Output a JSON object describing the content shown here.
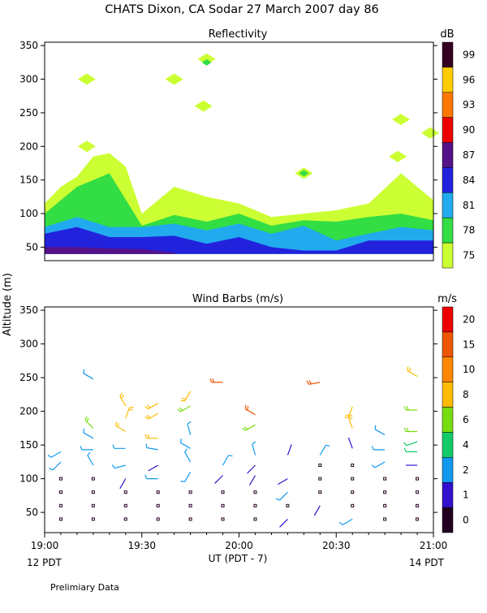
{
  "header": {
    "title": "CHATS Dixon, CA   Sodar   27 March 2007   day  86"
  },
  "shared": {
    "ylabel": "Altitude (m)",
    "xlabel": "UT  (PDT - 7)",
    "x_ticks": [
      "19:00",
      "19:30",
      "20:00",
      "20:30",
      "21:00"
    ],
    "left_note": "12 PDT",
    "right_note": "14 PDT",
    "footer": "Prelimiary Data"
  },
  "chart_data": [
    {
      "type": "heatmap",
      "title": "Reflectivity",
      "colorbar_title": "dB",
      "xlim": [
        0,
        120
      ],
      "ylim": [
        30,
        355
      ],
      "y_ticks": [
        50,
        100,
        150,
        200,
        250,
        300,
        350
      ],
      "levels": [
        "75",
        "78",
        "81",
        "84",
        "87",
        "90",
        "93",
        "96",
        "99"
      ],
      "colors": {
        "75": "#ccff33",
        "78": "#33dd44",
        "81": "#22aaee",
        "84": "#2222dd",
        "87": "#551188",
        "90": "#ee0000",
        "93": "#ff7700",
        "96": "#ffcc00",
        "99": "#330022"
      },
      "contours": [
        {
          "level": "75",
          "x": [
            0,
            5,
            10,
            15,
            20,
            25,
            30,
            40,
            50,
            60,
            70,
            80,
            90,
            100,
            110,
            115,
            120
          ],
          "y": [
            115,
            140,
            155,
            185,
            190,
            170,
            100,
            140,
            125,
            115,
            95,
            100,
            105,
            115,
            160,
            140,
            120
          ]
        },
        {
          "level": "78",
          "x": [
            0,
            10,
            15,
            20,
            30,
            40,
            50,
            60,
            70,
            80,
            90,
            100,
            110,
            120
          ],
          "y": [
            100,
            140,
            150,
            160,
            82,
            98,
            88,
            100,
            82,
            90,
            88,
            95,
            100,
            90
          ]
        },
        {
          "level": "81",
          "x": [
            0,
            10,
            20,
            30,
            40,
            50,
            60,
            70,
            80,
            90,
            100,
            110,
            120
          ],
          "y": [
            80,
            95,
            80,
            80,
            85,
            75,
            85,
            70,
            82,
            60,
            70,
            80,
            75
          ]
        },
        {
          "level": "84",
          "x": [
            0,
            10,
            20,
            30,
            40,
            50,
            60,
            70,
            80,
            90,
            100,
            110,
            120
          ],
          "y": [
            70,
            80,
            65,
            65,
            67,
            55,
            65,
            50,
            45,
            45,
            60,
            60,
            60
          ]
        },
        {
          "level": "87",
          "x": [
            0,
            10,
            20,
            30,
            40
          ],
          "y": [
            50,
            50,
            48,
            47,
            42
          ]
        }
      ],
      "blobs": [
        {
          "level": "75",
          "x": 13,
          "y": 300
        },
        {
          "level": "75",
          "x": 13,
          "y": 200
        },
        {
          "level": "75",
          "x": 40,
          "y": 300
        },
        {
          "level": "75",
          "x": 50,
          "y": 330
        },
        {
          "level": "78",
          "x": 50,
          "y": 325
        },
        {
          "level": "75",
          "x": 49,
          "y": 260
        },
        {
          "level": "75",
          "x": 80,
          "y": 160
        },
        {
          "level": "78",
          "x": 80,
          "y": 160
        },
        {
          "level": "75",
          "x": 110,
          "y": 240
        },
        {
          "level": "75",
          "x": 109,
          "y": 185
        },
        {
          "level": "75",
          "x": 119,
          "y": 220
        }
      ]
    },
    {
      "type": "scatter",
      "title": "Wind Barbs (m/s)",
      "colorbar_title": "m/s",
      "xlim": [
        0,
        120
      ],
      "ylim": [
        20,
        355
      ],
      "y_ticks": [
        50,
        100,
        150,
        200,
        250,
        300,
        350
      ],
      "levels": [
        "0",
        "1",
        "2",
        "4",
        "6",
        "8",
        "10",
        "15",
        "20"
      ],
      "colors": {
        "0": "#220022",
        "1": "#3311cc",
        "2": "#1199ee",
        "4": "#11cc66",
        "6": "#77dd11",
        "8": "#ffbb00",
        "10": "#ff8800",
        "15": "#ee5500",
        "20": "#ee0000"
      },
      "barbs": [
        {
          "x": 5,
          "y": 40,
          "s": "0"
        },
        {
          "x": 5,
          "y": 60,
          "s": "0"
        },
        {
          "x": 5,
          "y": 80,
          "s": "0"
        },
        {
          "x": 5,
          "y": 100,
          "s": "0"
        },
        {
          "x": 5,
          "y": 125,
          "s": "2",
          "d": 225
        },
        {
          "x": 5,
          "y": 140,
          "s": "2",
          "d": 240
        },
        {
          "x": 15,
          "y": 40,
          "s": "0"
        },
        {
          "x": 15,
          "y": 60,
          "s": "0"
        },
        {
          "x": 15,
          "y": 80,
          "s": "0"
        },
        {
          "x": 15,
          "y": 100,
          "s": "0"
        },
        {
          "x": 15,
          "y": 120,
          "s": "2",
          "d": 330
        },
        {
          "x": 15,
          "y": 143,
          "s": "2",
          "d": 270
        },
        {
          "x": 15,
          "y": 160,
          "s": "2",
          "d": 300
        },
        {
          "x": 15,
          "y": 175,
          "s": "6",
          "d": 315
        },
        {
          "x": 15,
          "y": 248,
          "s": "2",
          "d": 300
        },
        {
          "x": 25,
          "y": 40,
          "s": "0"
        },
        {
          "x": 25,
          "y": 60,
          "s": "0"
        },
        {
          "x": 25,
          "y": 80,
          "s": "0"
        },
        {
          "x": 25,
          "y": 100,
          "s": "1",
          "d": 210
        },
        {
          "x": 25,
          "y": 120,
          "s": "2",
          "d": 255
        },
        {
          "x": 25,
          "y": 145,
          "s": "2",
          "d": 270
        },
        {
          "x": 25,
          "y": 170,
          "s": "8",
          "d": 300
        },
        {
          "x": 25,
          "y": 190,
          "s": "8",
          "d": 20
        },
        {
          "x": 25,
          "y": 208,
          "s": "8",
          "d": 330
        },
        {
          "x": 35,
          "y": 40,
          "s": "0"
        },
        {
          "x": 35,
          "y": 60,
          "s": "0"
        },
        {
          "x": 35,
          "y": 80,
          "s": "0"
        },
        {
          "x": 35,
          "y": 100,
          "s": "2",
          "d": 270
        },
        {
          "x": 35,
          "y": 120,
          "s": "1",
          "d": 240
        },
        {
          "x": 35,
          "y": 143,
          "s": "2",
          "d": 280
        },
        {
          "x": 35,
          "y": 160,
          "s": "8",
          "d": 270
        },
        {
          "x": 35,
          "y": 197,
          "s": "8",
          "d": 240
        },
        {
          "x": 35,
          "y": 212,
          "s": "8",
          "d": 240
        },
        {
          "x": 45,
          "y": 40,
          "s": "0"
        },
        {
          "x": 45,
          "y": 60,
          "s": "0"
        },
        {
          "x": 45,
          "y": 80,
          "s": "0"
        },
        {
          "x": 45,
          "y": 110,
          "s": "2",
          "d": 210
        },
        {
          "x": 45,
          "y": 125,
          "s": "2",
          "d": 330
        },
        {
          "x": 45,
          "y": 145,
          "s": "2",
          "d": 300
        },
        {
          "x": 45,
          "y": 165,
          "s": "2",
          "d": 345
        },
        {
          "x": 45,
          "y": 208,
          "s": "6",
          "d": 240
        },
        {
          "x": 45,
          "y": 230,
          "s": "8",
          "d": 210
        },
        {
          "x": 55,
          "y": 40,
          "s": "0"
        },
        {
          "x": 55,
          "y": 60,
          "s": "0"
        },
        {
          "x": 55,
          "y": 80,
          "s": "0"
        },
        {
          "x": 55,
          "y": 105,
          "s": "1",
          "d": 225
        },
        {
          "x": 55,
          "y": 120,
          "s": "2",
          "d": 30
        },
        {
          "x": 55,
          "y": 243,
          "s": "15",
          "d": 270
        },
        {
          "x": 65,
          "y": 40,
          "s": "0"
        },
        {
          "x": 65,
          "y": 60,
          "s": "0"
        },
        {
          "x": 65,
          "y": 80,
          "s": "0"
        },
        {
          "x": 65,
          "y": 105,
          "s": "1",
          "d": 210
        },
        {
          "x": 65,
          "y": 120,
          "s": "1",
          "d": 225
        },
        {
          "x": 65,
          "y": 135,
          "s": "2",
          "d": 345
        },
        {
          "x": 65,
          "y": 195,
          "s": "15",
          "d": 300
        },
        {
          "x": 65,
          "y": 180,
          "s": "6",
          "d": 240
        },
        {
          "x": 75,
          "y": 40,
          "s": "1",
          "d": 225
        },
        {
          "x": 75,
          "y": 60,
          "s": "0"
        },
        {
          "x": 75,
          "y": 80,
          "s": "2",
          "d": 225
        },
        {
          "x": 75,
          "y": 100,
          "s": "1",
          "d": 240
        },
        {
          "x": 75,
          "y": 135,
          "s": "1",
          "d": 20
        },
        {
          "x": 85,
          "y": 60,
          "s": "1",
          "d": 210
        },
        {
          "x": 85,
          "y": 80,
          "s": "0"
        },
        {
          "x": 85,
          "y": 100,
          "s": "0"
        },
        {
          "x": 85,
          "y": 120,
          "s": "0"
        },
        {
          "x": 85,
          "y": 135,
          "s": "2",
          "d": 30
        },
        {
          "x": 85,
          "y": 243,
          "s": "15",
          "d": 260
        },
        {
          "x": 95,
          "y": 40,
          "s": "2",
          "d": 240
        },
        {
          "x": 95,
          "y": 60,
          "s": "0"
        },
        {
          "x": 95,
          "y": 80,
          "s": "0"
        },
        {
          "x": 95,
          "y": 100,
          "s": "0"
        },
        {
          "x": 95,
          "y": 120,
          "s": "0"
        },
        {
          "x": 95,
          "y": 145,
          "s": "1",
          "d": 340
        },
        {
          "x": 95,
          "y": 175,
          "s": "8",
          "d": 340
        },
        {
          "x": 95,
          "y": 207,
          "s": "8",
          "d": 200
        },
        {
          "x": 105,
          "y": 40,
          "s": "0"
        },
        {
          "x": 105,
          "y": 60,
          "s": "0"
        },
        {
          "x": 105,
          "y": 80,
          "s": "0"
        },
        {
          "x": 105,
          "y": 100,
          "s": "0"
        },
        {
          "x": 105,
          "y": 125,
          "s": "2",
          "d": 240
        },
        {
          "x": 105,
          "y": 143,
          "s": "2",
          "d": 270
        },
        {
          "x": 105,
          "y": 165,
          "s": "2",
          "d": 300
        },
        {
          "x": 115,
          "y": 40,
          "s": "0"
        },
        {
          "x": 115,
          "y": 60,
          "s": "0"
        },
        {
          "x": 115,
          "y": 80,
          "s": "0"
        },
        {
          "x": 115,
          "y": 100,
          "s": "0"
        },
        {
          "x": 115,
          "y": 120,
          "s": "1",
          "d": 270
        },
        {
          "x": 115,
          "y": 140,
          "s": "4",
          "d": 270
        },
        {
          "x": 115,
          "y": 155,
          "s": "4",
          "d": 250
        },
        {
          "x": 115,
          "y": 170,
          "s": "6",
          "d": 270
        },
        {
          "x": 115,
          "y": 202,
          "s": "6",
          "d": 270
        },
        {
          "x": 115,
          "y": 252,
          "s": "8",
          "d": 300
        }
      ]
    }
  ]
}
